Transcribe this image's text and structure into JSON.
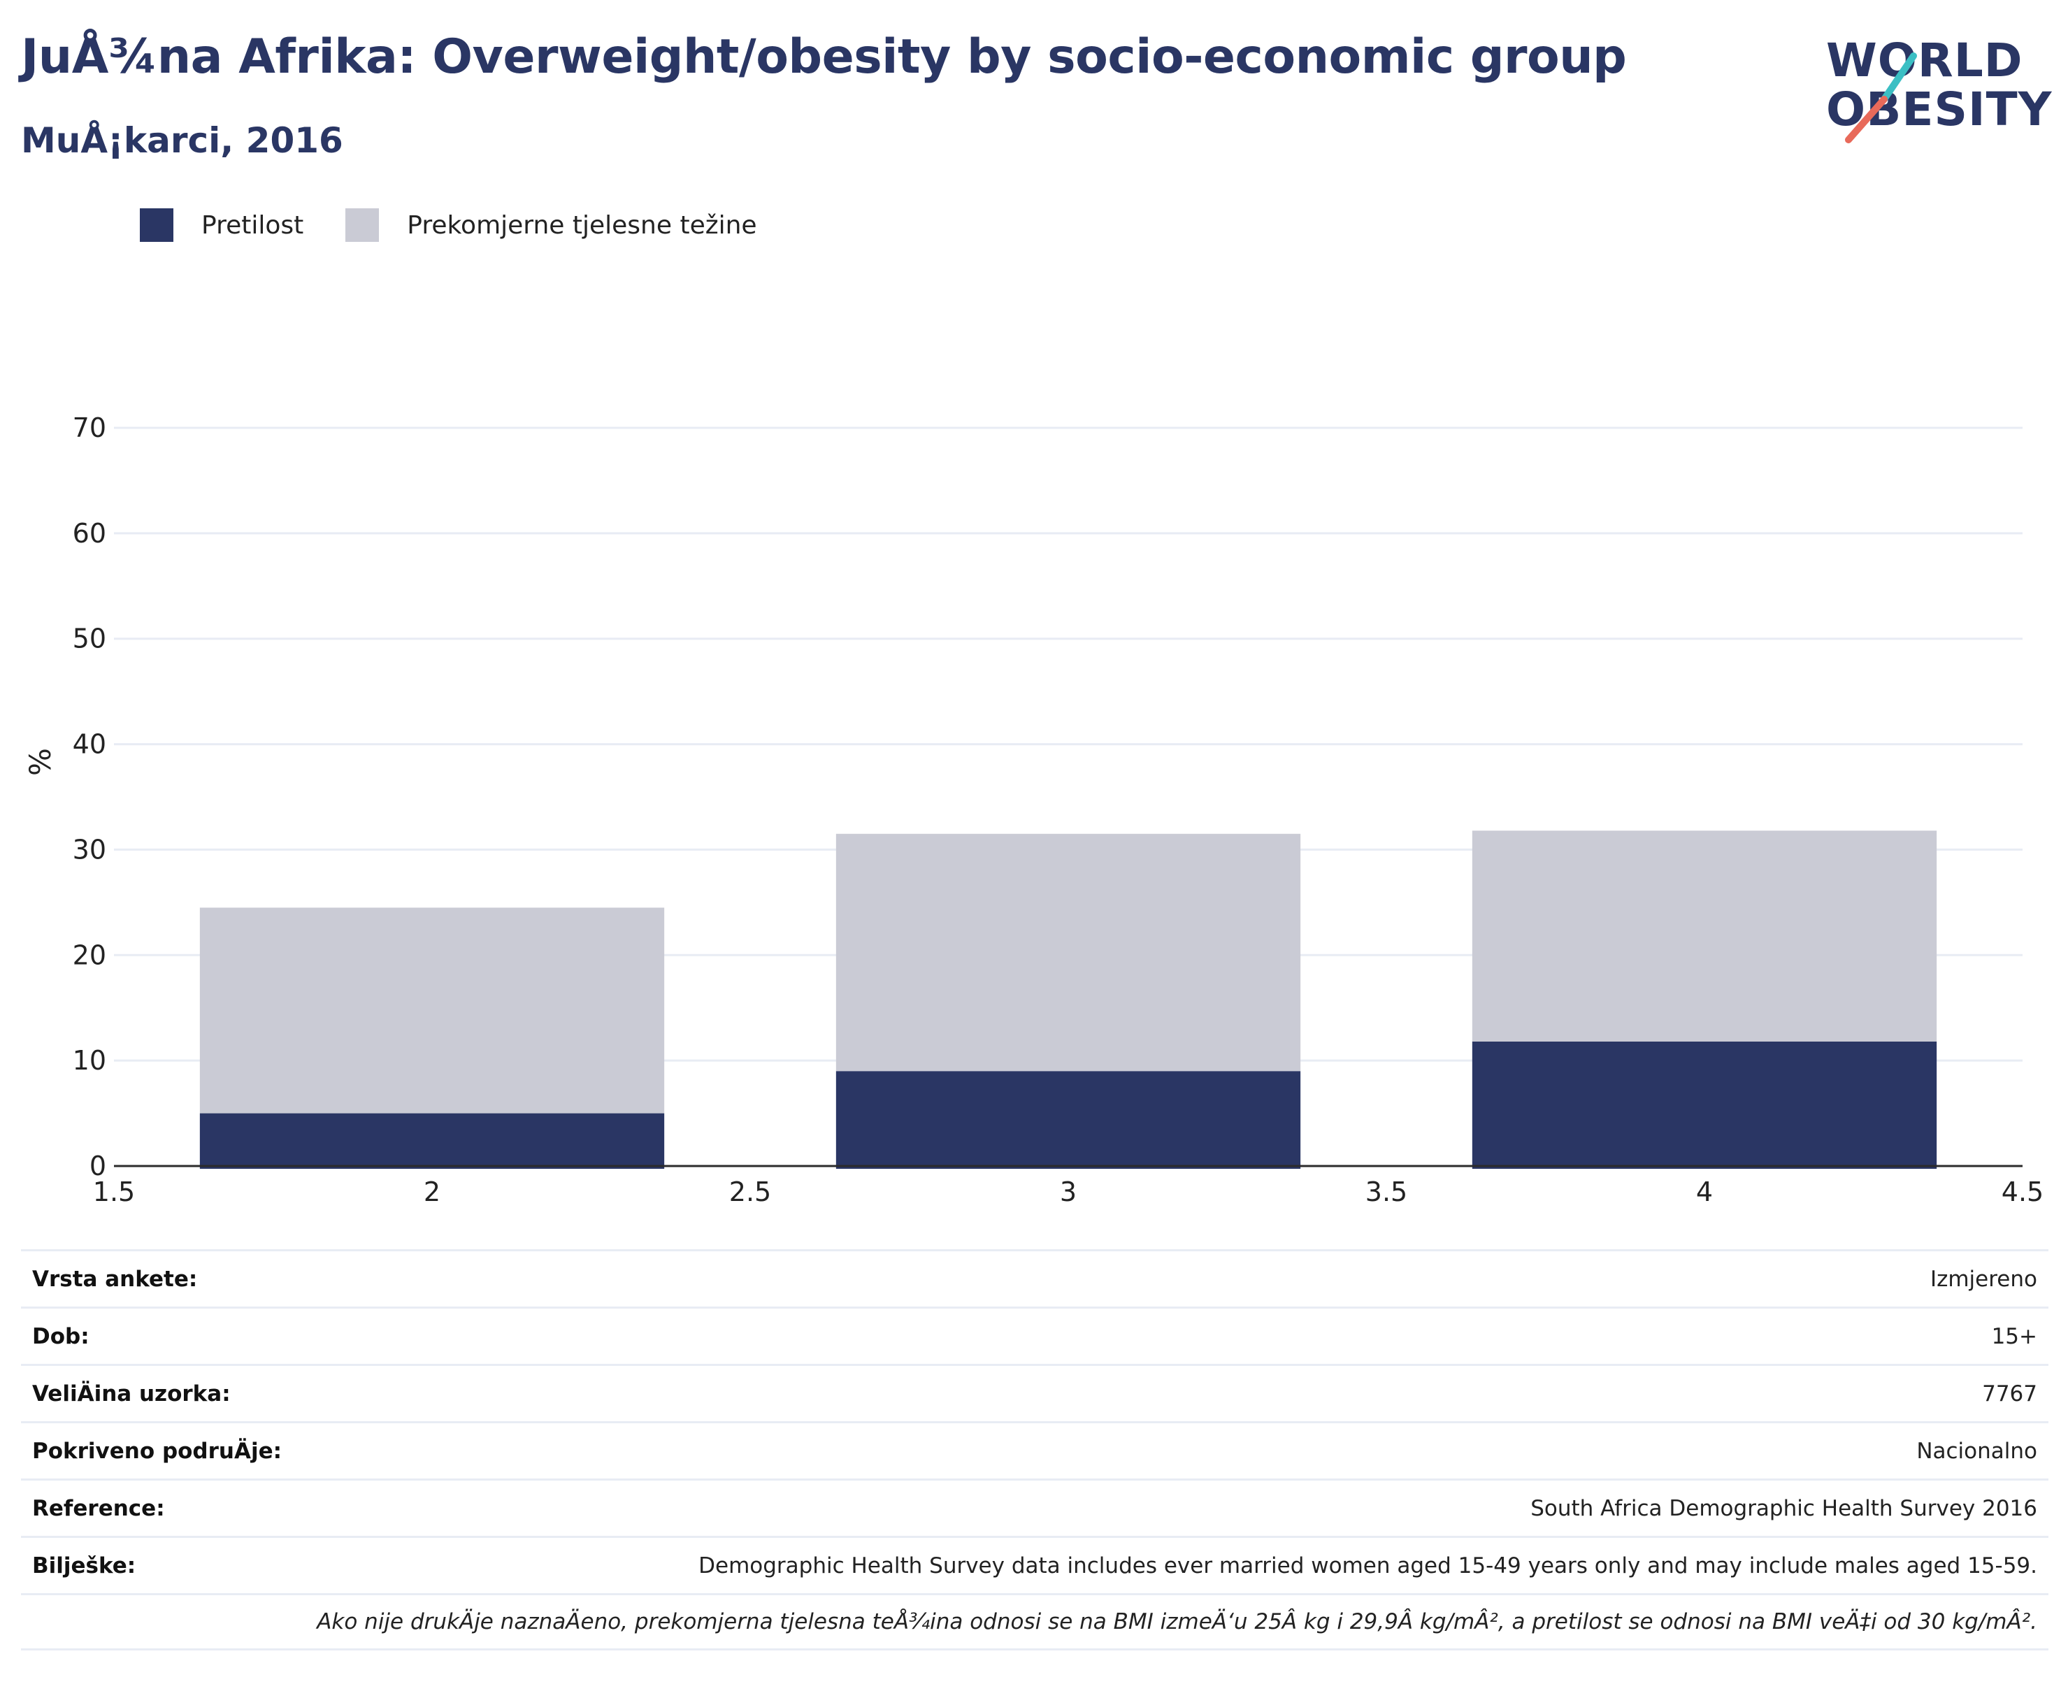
{
  "header": {
    "title": "JuÅ¾na Afrika: Overweight/obesity by socio-economic group",
    "subtitle": "MuÅ¡karci, 2016"
  },
  "logo": {
    "line1": "WORLD",
    "line2": "OBESITY",
    "accent_teal": "#3bbfc4",
    "accent_coral": "#e86a5a"
  },
  "colors": {
    "primary": "#2a3664",
    "overweight": "#cacbd5",
    "grid": "#e8ecf4",
    "axis": "#2b2b2b"
  },
  "chart_data": {
    "type": "bar",
    "stacked": true,
    "x": [
      2,
      3,
      4
    ],
    "series": [
      {
        "name": "Pretilost",
        "values": [
          5,
          9,
          11.8
        ],
        "color": "#2a3664"
      },
      {
        "name": "Prekomjerne tjelesne težine",
        "values": [
          19.5,
          22.5,
          20
        ],
        "color": "#cacbd5"
      }
    ],
    "xlim": [
      1.5,
      4.5
    ],
    "ylim": [
      0,
      70
    ],
    "xticks": [
      "1.5",
      "2",
      "2.5",
      "3",
      "3.5",
      "4",
      "4.5"
    ],
    "yticks": [
      "0",
      "10",
      "20",
      "30",
      "40",
      "50",
      "60",
      "70"
    ],
    "ylabel": "%",
    "xlabel": "",
    "grid": true,
    "legend": "top-left"
  },
  "meta": {
    "rows": [
      {
        "label": "Vrsta ankete:",
        "value": "Izmjereno"
      },
      {
        "label": "Dob:",
        "value": "15+"
      },
      {
        "label": "VeliÄ\bina uzorka:",
        "value": "7767"
      },
      {
        "label": "Pokriveno podruÄ\bje:",
        "value": "Nacionalno"
      },
      {
        "label": "Reference:",
        "value": "South Africa Demographic Health Survey 2016"
      },
      {
        "label": "Bilješke:",
        "value": "Demographic Health Survey data includes ever married women aged 15-49 years only and may include males aged 15-59."
      }
    ],
    "note": "Ako nije drukÄ\bje naznaÄ\beno, prekomjerna tjelesna teÅ¾ina odnosi se na BMI izmeÄ‘u 25Â kg i 29,9Â kg/mÂ², a pretilost se odnosi na BMI veÄ‡i od 30 kg/mÂ²."
  }
}
